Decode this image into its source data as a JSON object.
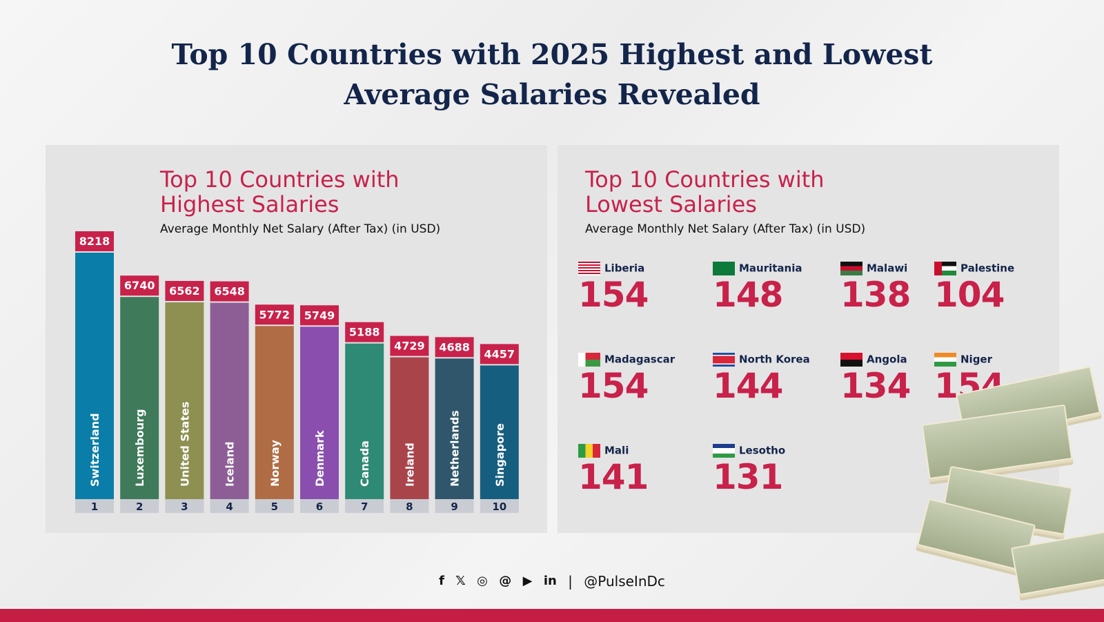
{
  "title_line1": "Top 10 Countries with 2025 Highest and Lowest",
  "title_line2": "Average Salaries Revealed",
  "highest": {
    "title_line1": "Top 10 Countries with",
    "title_line2": "Highest Salaries",
    "subtitle": "Average Monthly Net Salary (After Tax) (in USD)"
  },
  "lowest": {
    "title_line1": "Top 10 Countries with",
    "title_line2": "Lowest Salaries",
    "subtitle": "Average Monthly Net Salary (After Tax) (in USD)",
    "items": [
      {
        "name": "Liberia",
        "value": "154",
        "flag": "liberia"
      },
      {
        "name": "Mauritania",
        "value": "148",
        "flag": "mauritania"
      },
      {
        "name": "Malawi",
        "value": "138",
        "flag": "malawi"
      },
      {
        "name": "Palestine",
        "value": "104",
        "flag": "palestine"
      },
      {
        "name": "Madagascar",
        "value": "154",
        "flag": "madagascar"
      },
      {
        "name": "North Korea",
        "value": "144",
        "flag": "north-korea"
      },
      {
        "name": "Angola",
        "value": "134",
        "flag": "angola"
      },
      {
        "name": "Niger",
        "value": "154",
        "flag": "niger"
      },
      {
        "name": "Mali",
        "value": "141",
        "flag": "mali"
      },
      {
        "name": "Lesotho",
        "value": "131",
        "flag": "lesotho"
      }
    ]
  },
  "chart_data": {
    "type": "bar",
    "title": "Top 10 Countries with Highest Salaries",
    "subtitle": "Average Monthly Net Salary (After Tax) (in USD)",
    "categories": [
      "Switzerland",
      "Luxembourg",
      "United States",
      "Iceland",
      "Norway",
      "Denmark",
      "Canada",
      "Ireland",
      "Netherlands",
      "Singapore"
    ],
    "ranks": [
      "1",
      "2",
      "3",
      "4",
      "5",
      "6",
      "7",
      "8",
      "9",
      "10"
    ],
    "values": [
      8218,
      6740,
      6562,
      6548,
      5772,
      5749,
      5188,
      4729,
      4688,
      4457
    ],
    "colors": [
      "#0a7ea8",
      "#3f7a5a",
      "#8e9052",
      "#8d5e96",
      "#b06c44",
      "#8a4fae",
      "#2e8a74",
      "#a9444b",
      "#2f566b",
      "#165e80"
    ],
    "label_color": "#c8214a",
    "grid": false,
    "ylim": [
      0,
      8218
    ]
  },
  "footer": {
    "icons": [
      "facebook-icon",
      "x-icon",
      "instagram-icon",
      "threads-icon",
      "youtube-icon",
      "linkedin-icon"
    ],
    "handle": "@PulseInDc"
  },
  "colors": {
    "accent": "#c8214a",
    "navy": "#13254a",
    "footer_bar": "#c41e45"
  }
}
